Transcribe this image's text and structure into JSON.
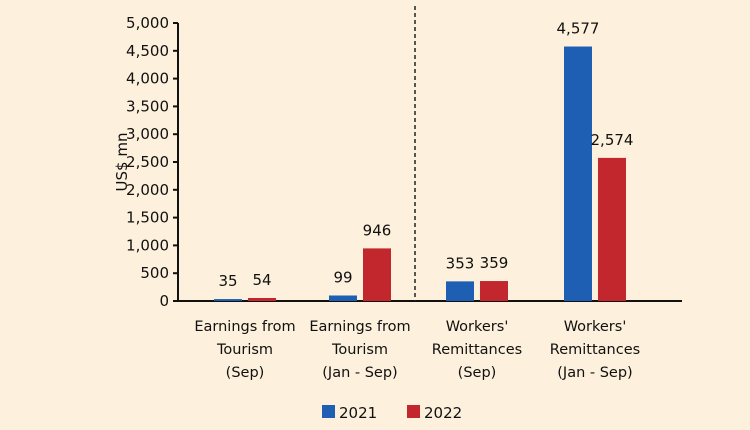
{
  "chart_data": {
    "type": "bar",
    "categories": [
      [
        "Earnings from",
        "Tourism",
        "(Sep)"
      ],
      [
        "Earnings from",
        "Tourism",
        "(Jan - Sep)"
      ],
      [
        "Workers'",
        "Remittances",
        "(Sep)"
      ],
      [
        "Workers'",
        "Remittances",
        "(Jan - Sep)"
      ]
    ],
    "series": [
      {
        "name": "2021",
        "color": "#1f5fb3",
        "values": [
          35,
          99,
          353,
          4577
        ],
        "labels": [
          "35",
          "99",
          "353",
          "4,577"
        ]
      },
      {
        "name": "2022",
        "color": "#c1272d",
        "values": [
          54,
          946,
          359,
          2574
        ],
        "labels": [
          "54",
          "946",
          "359",
          "2,574"
        ]
      }
    ],
    "xlabel": "",
    "ylabel": "US$ mn",
    "ylim": [
      0,
      5000
    ],
    "yticks": [
      0,
      500,
      1000,
      1500,
      2000,
      2500,
      3000,
      3500,
      4000,
      4500,
      5000
    ],
    "ytick_labels": [
      "0",
      "500",
      "1,000",
      "1,500",
      "2,000",
      "2,500",
      "3,000",
      "3,500",
      "4,000",
      "4,500",
      "5,000"
    ],
    "grid": false,
    "legend": "bottom",
    "separator": "dashed vertical line between Tourism and Remittances groups"
  }
}
